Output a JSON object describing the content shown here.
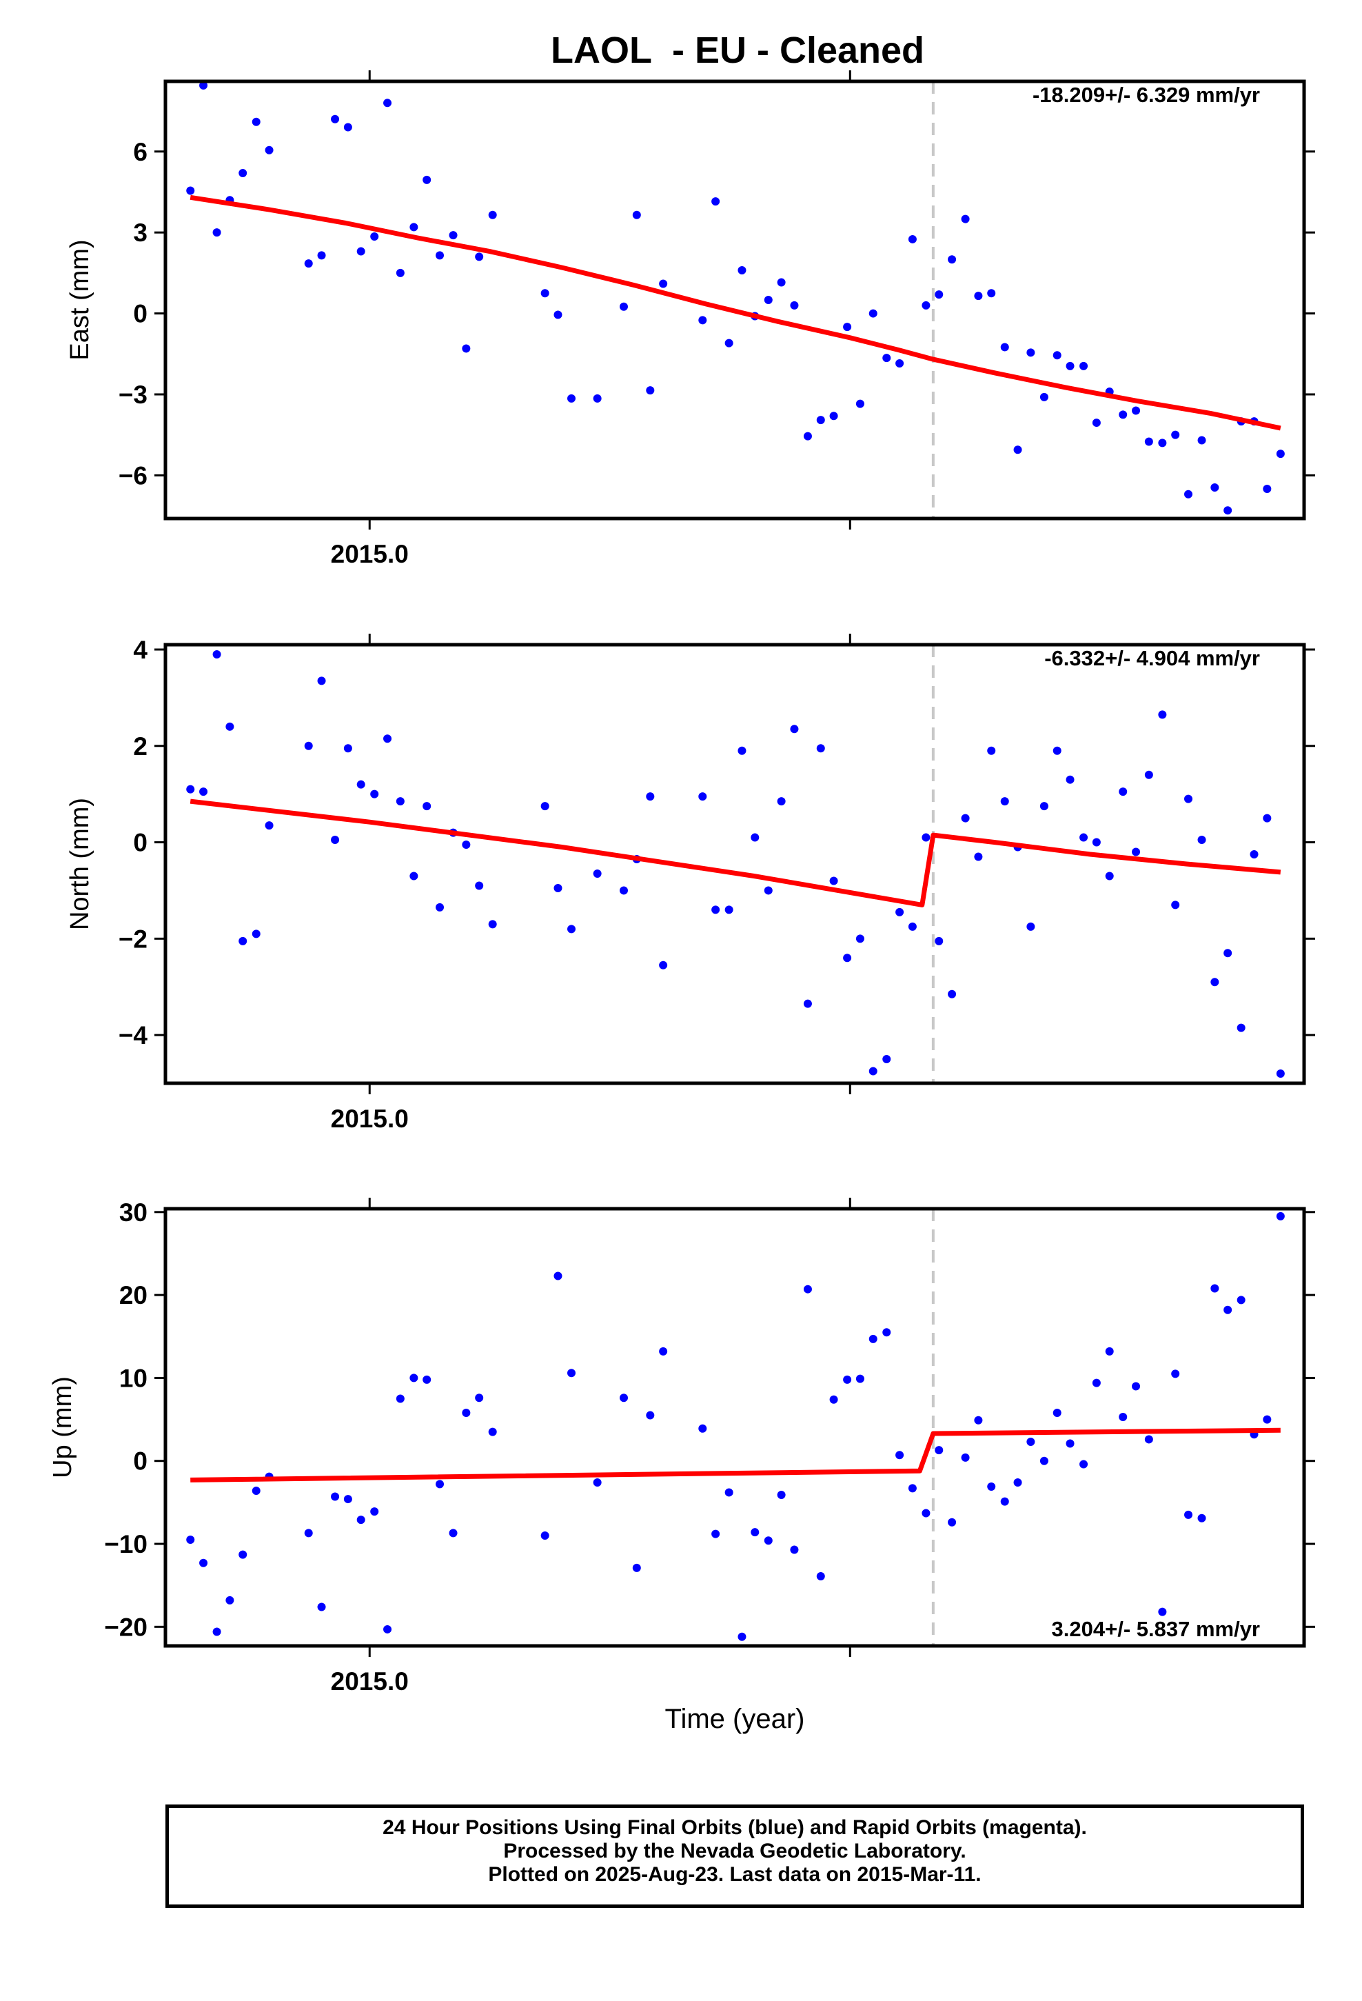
{
  "title": "LAOL  - EU - Cleaned",
  "xlabel": "Time (year)",
  "footer": {
    "line1": "24 Hour Positions Using Final Orbits (blue) and Rapid Orbits (magenta).",
    "line2": "Processed by the Nevada Geodetic Laboratory.",
    "line3": "Plotted on 2025-Aug-23. Last data on 2015-Mar-11."
  },
  "colors": {
    "points": "#0000ff",
    "fit": "#ff0000",
    "break_line": "#c8c8c8"
  },
  "chart_data": [
    {
      "type": "scatter",
      "component": "East",
      "ylabel": "East (mm)",
      "rate_label": "-18.209+/- 6.329 mm/yr",
      "xtick_label": "2015.0",
      "xlim": [
        2014.9575,
        2015.1945
      ],
      "ylim": [
        -7.6,
        8.6
      ],
      "yticks": [
        6,
        3,
        0,
        -3,
        -6
      ],
      "ytick_labels": [
        "6",
        "3",
        "0",
        "−3",
        "−6"
      ],
      "break_x": 2015.1173,
      "points": [
        [
          2014.9627,
          4.55
        ],
        [
          2014.9654,
          8.45
        ],
        [
          2014.9682,
          3.0
        ],
        [
          2014.9709,
          4.2
        ],
        [
          2014.9736,
          5.2
        ],
        [
          2014.9764,
          7.1
        ],
        [
          2014.9791,
          6.05
        ],
        [
          2014.9873,
          1.85
        ],
        [
          2014.99,
          2.15
        ],
        [
          2014.9928,
          7.2
        ],
        [
          2014.9955,
          6.9
        ],
        [
          2014.9982,
          2.3
        ],
        [
          2015.001,
          2.85
        ],
        [
          2015.0037,
          7.8
        ],
        [
          2015.0064,
          1.5
        ],
        [
          2015.0092,
          3.2
        ],
        [
          2015.0119,
          4.95
        ],
        [
          2015.0146,
          2.15
        ],
        [
          2015.0174,
          2.9
        ],
        [
          2015.0201,
          -1.3
        ],
        [
          2015.0228,
          2.1
        ],
        [
          2015.0256,
          3.65
        ],
        [
          2015.0365,
          0.75
        ],
        [
          2015.0392,
          -0.05
        ],
        [
          2015.042,
          -3.15
        ],
        [
          2015.0474,
          -3.15
        ],
        [
          2015.0529,
          0.25
        ],
        [
          2015.0556,
          3.65
        ],
        [
          2015.0584,
          -2.85
        ],
        [
          2015.0611,
          1.1
        ],
        [
          2015.0693,
          -0.25
        ],
        [
          2015.072,
          4.15
        ],
        [
          2015.0748,
          -1.1
        ],
        [
          2015.0775,
          1.6
        ],
        [
          2015.0802,
          -0.1
        ],
        [
          2015.083,
          0.5
        ],
        [
          2015.0857,
          1.15
        ],
        [
          2015.0884,
          0.3
        ],
        [
          2015.0912,
          -4.55
        ],
        [
          2015.0939,
          -3.95
        ],
        [
          2015.0966,
          -3.8
        ],
        [
          2015.0994,
          -0.5
        ],
        [
          2015.1021,
          -3.35
        ],
        [
          2015.1048,
          0.0
        ],
        [
          2015.1076,
          -1.65
        ],
        [
          2015.1103,
          -1.85
        ],
        [
          2015.113,
          2.75
        ],
        [
          2015.1158,
          0.3
        ],
        [
          2015.1185,
          0.7
        ],
        [
          2015.1212,
          2.0
        ],
        [
          2015.124,
          3.5
        ],
        [
          2015.1267,
          0.65
        ],
        [
          2015.1294,
          0.75
        ],
        [
          2015.1322,
          -1.25
        ],
        [
          2015.1349,
          -5.05
        ],
        [
          2015.1376,
          -1.45
        ],
        [
          2015.1404,
          -3.1
        ],
        [
          2015.1431,
          -1.55
        ],
        [
          2015.1458,
          -1.95
        ],
        [
          2015.1486,
          -1.95
        ],
        [
          2015.1513,
          -4.05
        ],
        [
          2015.154,
          -2.9
        ],
        [
          2015.1568,
          -3.75
        ],
        [
          2015.1595,
          -3.6
        ],
        [
          2015.1622,
          -4.75
        ],
        [
          2015.165,
          -4.8
        ],
        [
          2015.1677,
          -4.5
        ],
        [
          2015.1704,
          -6.7
        ],
        [
          2015.1732,
          -4.7
        ],
        [
          2015.1759,
          -6.45
        ],
        [
          2015.1786,
          -7.3
        ],
        [
          2015.1814,
          -4.0
        ],
        [
          2015.1841,
          -4.0
        ],
        [
          2015.1868,
          -6.5
        ],
        [
          2015.1896,
          -5.2
        ]
      ],
      "fit": [
        [
          2014.9627,
          4.3
        ],
        [
          2014.979,
          3.85
        ],
        [
          2014.995,
          3.35
        ],
        [
          2015.01,
          2.8
        ],
        [
          2015.025,
          2.3
        ],
        [
          2015.04,
          1.7
        ],
        [
          2015.055,
          1.05
        ],
        [
          2015.07,
          0.35
        ],
        [
          2015.085,
          -0.3
        ],
        [
          2015.1,
          -0.9
        ],
        [
          2015.11,
          -1.35
        ],
        [
          2015.1173,
          -1.7
        ],
        [
          2015.13,
          -2.2
        ],
        [
          2015.145,
          -2.75
        ],
        [
          2015.16,
          -3.25
        ],
        [
          2015.175,
          -3.7
        ],
        [
          2015.1896,
          -4.25
        ]
      ]
    },
    {
      "type": "scatter",
      "component": "North",
      "ylabel": "North (mm)",
      "rate_label": "-6.332+/- 4.904 mm/yr",
      "xtick_label": "2015.0",
      "xlim": [
        2014.9575,
        2015.1945
      ],
      "ylim": [
        -5.0,
        4.1
      ],
      "yticks": [
        4,
        2,
        0,
        -2,
        -4
      ],
      "ytick_labels": [
        "4",
        "2",
        "0",
        "−2",
        "−4"
      ],
      "break_x": 2015.1173,
      "points": [
        [
          2014.9627,
          1.1
        ],
        [
          2014.9654,
          1.05
        ],
        [
          2014.9682,
          3.9
        ],
        [
          2014.9709,
          2.4
        ],
        [
          2014.9736,
          -2.05
        ],
        [
          2014.9764,
          -1.9
        ],
        [
          2014.9791,
          0.35
        ],
        [
          2014.9873,
          2.0
        ],
        [
          2014.99,
          3.35
        ],
        [
          2014.9928,
          0.05
        ],
        [
          2014.9955,
          1.95
        ],
        [
          2014.9982,
          1.2
        ],
        [
          2015.001,
          1.0
        ],
        [
          2015.0037,
          2.15
        ],
        [
          2015.0064,
          0.85
        ],
        [
          2015.0092,
          -0.7
        ],
        [
          2015.0119,
          0.75
        ],
        [
          2015.0146,
          -1.35
        ],
        [
          2015.0174,
          0.2
        ],
        [
          2015.0201,
          -0.05
        ],
        [
          2015.0228,
          -0.9
        ],
        [
          2015.0256,
          -1.7
        ],
        [
          2015.0365,
          0.75
        ],
        [
          2015.0392,
          -0.95
        ],
        [
          2015.042,
          -1.8
        ],
        [
          2015.0474,
          -0.65
        ],
        [
          2015.0529,
          -1.0
        ],
        [
          2015.0556,
          -0.35
        ],
        [
          2015.0584,
          0.95
        ],
        [
          2015.0611,
          -2.55
        ],
        [
          2015.0693,
          0.95
        ],
        [
          2015.072,
          -1.4
        ],
        [
          2015.0748,
          -1.4
        ],
        [
          2015.0775,
          1.9
        ],
        [
          2015.0802,
          0.1
        ],
        [
          2015.083,
          -1.0
        ],
        [
          2015.0857,
          0.85
        ],
        [
          2015.0884,
          2.35
        ],
        [
          2015.0912,
          -3.35
        ],
        [
          2015.0939,
          1.95
        ],
        [
          2015.0966,
          -0.8
        ],
        [
          2015.0994,
          -2.4
        ],
        [
          2015.1021,
          -2.0
        ],
        [
          2015.1048,
          -4.75
        ],
        [
          2015.1076,
          -4.5
        ],
        [
          2015.1103,
          -1.45
        ],
        [
          2015.113,
          -1.75
        ],
        [
          2015.1158,
          0.1
        ],
        [
          2015.1185,
          -2.05
        ],
        [
          2015.1212,
          -3.15
        ],
        [
          2015.124,
          0.5
        ],
        [
          2015.1267,
          -0.3
        ],
        [
          2015.1294,
          1.9
        ],
        [
          2015.1322,
          0.85
        ],
        [
          2015.1349,
          -0.1
        ],
        [
          2015.1376,
          -1.75
        ],
        [
          2015.1404,
          0.75
        ],
        [
          2015.1431,
          1.9
        ],
        [
          2015.1458,
          1.3
        ],
        [
          2015.1486,
          0.1
        ],
        [
          2015.1513,
          0.0
        ],
        [
          2015.154,
          -0.7
        ],
        [
          2015.1568,
          1.05
        ],
        [
          2015.1595,
          -0.2
        ],
        [
          2015.1622,
          1.4
        ],
        [
          2015.165,
          2.65
        ],
        [
          2015.1677,
          -1.3
        ],
        [
          2015.1704,
          0.9
        ],
        [
          2015.1732,
          0.05
        ],
        [
          2015.1759,
          -2.9
        ],
        [
          2015.1786,
          -2.3
        ],
        [
          2015.1814,
          -3.85
        ],
        [
          2015.1841,
          -0.25
        ],
        [
          2015.1868,
          0.5
        ],
        [
          2015.1896,
          -4.8
        ]
      ],
      "fit": [
        [
          2014.9627,
          0.85
        ],
        [
          2015.0,
          0.42
        ],
        [
          2015.04,
          -0.1
        ],
        [
          2015.08,
          -0.7
        ],
        [
          2015.115,
          -1.3
        ],
        [
          2015.1173,
          0.15
        ],
        [
          2015.13,
          0.0
        ],
        [
          2015.15,
          -0.25
        ],
        [
          2015.17,
          -0.45
        ],
        [
          2015.1896,
          -0.62
        ]
      ]
    },
    {
      "type": "scatter",
      "component": "Up",
      "ylabel": "Up (mm)",
      "rate_label": "3.204+/- 5.837 mm/yr",
      "xtick_label": "2015.0",
      "xlim": [
        2014.9575,
        2015.1945
      ],
      "ylim": [
        -22.3,
        30.4
      ],
      "yticks": [
        30,
        20,
        10,
        0,
        -10,
        -20
      ],
      "ytick_labels": [
        "30",
        "20",
        "10",
        "0",
        "−10",
        "−20"
      ],
      "break_x": 2015.1173,
      "points": [
        [
          2014.9627,
          -9.5
        ],
        [
          2014.9654,
          -12.3
        ],
        [
          2014.9682,
          -20.6
        ],
        [
          2014.9709,
          -16.8
        ],
        [
          2014.9736,
          -11.3
        ],
        [
          2014.9764,
          -3.6
        ],
        [
          2014.9791,
          -1.9
        ],
        [
          2014.9873,
          -8.7
        ],
        [
          2014.99,
          -17.6
        ],
        [
          2014.9928,
          -4.3
        ],
        [
          2014.9955,
          -4.6
        ],
        [
          2014.9982,
          -7.1
        ],
        [
          2015.001,
          -6.1
        ],
        [
          2015.0037,
          -20.3
        ],
        [
          2015.0064,
          7.5
        ],
        [
          2015.0092,
          10.0
        ],
        [
          2015.0119,
          9.8
        ],
        [
          2015.0146,
          -2.8
        ],
        [
          2015.0174,
          -8.7
        ],
        [
          2015.0201,
          5.8
        ],
        [
          2015.0228,
          7.6
        ],
        [
          2015.0256,
          3.5
        ],
        [
          2015.0365,
          -9.0
        ],
        [
          2015.0392,
          22.3
        ],
        [
          2015.042,
          10.6
        ],
        [
          2015.0474,
          -2.6
        ],
        [
          2015.0529,
          7.6
        ],
        [
          2015.0556,
          -12.9
        ],
        [
          2015.0584,
          5.5
        ],
        [
          2015.0611,
          13.2
        ],
        [
          2015.0693,
          3.9
        ],
        [
          2015.072,
          -8.8
        ],
        [
          2015.0748,
          -3.8
        ],
        [
          2015.0775,
          -21.2
        ],
        [
          2015.0802,
          -8.6
        ],
        [
          2015.083,
          -9.6
        ],
        [
          2015.0857,
          -4.1
        ],
        [
          2015.0884,
          -10.7
        ],
        [
          2015.0912,
          20.7
        ],
        [
          2015.0939,
          -13.9
        ],
        [
          2015.0966,
          7.4
        ],
        [
          2015.0994,
          9.8
        ],
        [
          2015.1021,
          9.9
        ],
        [
          2015.1048,
          14.7
        ],
        [
          2015.1076,
          15.5
        ],
        [
          2015.1103,
          0.7
        ],
        [
          2015.113,
          -3.3
        ],
        [
          2015.1158,
          -6.3
        ],
        [
          2015.1185,
          1.3
        ],
        [
          2015.1212,
          -7.4
        ],
        [
          2015.124,
          0.4
        ],
        [
          2015.1267,
          4.9
        ],
        [
          2015.1294,
          -3.1
        ],
        [
          2015.1322,
          -4.9
        ],
        [
          2015.1349,
          -2.6
        ],
        [
          2015.1376,
          2.3
        ],
        [
          2015.1404,
          0.0
        ],
        [
          2015.1431,
          5.8
        ],
        [
          2015.1458,
          2.1
        ],
        [
          2015.1486,
          -0.4
        ],
        [
          2015.1513,
          9.4
        ],
        [
          2015.154,
          13.2
        ],
        [
          2015.1568,
          5.3
        ],
        [
          2015.1595,
          9.0
        ],
        [
          2015.1622,
          2.6
        ],
        [
          2015.165,
          -18.2
        ],
        [
          2015.1677,
          10.5
        ],
        [
          2015.1704,
          -6.5
        ],
        [
          2015.1732,
          -6.9
        ],
        [
          2015.1759,
          20.8
        ],
        [
          2015.1786,
          18.2
        ],
        [
          2015.1814,
          19.4
        ],
        [
          2015.1841,
          3.2
        ],
        [
          2015.1868,
          5.0
        ],
        [
          2015.1896,
          29.5
        ]
      ],
      "fit": [
        [
          2014.9627,
          -2.3
        ],
        [
          2015.1145,
          -1.2
        ],
        [
          2015.1173,
          3.3
        ],
        [
          2015.1896,
          3.7
        ]
      ]
    }
  ]
}
